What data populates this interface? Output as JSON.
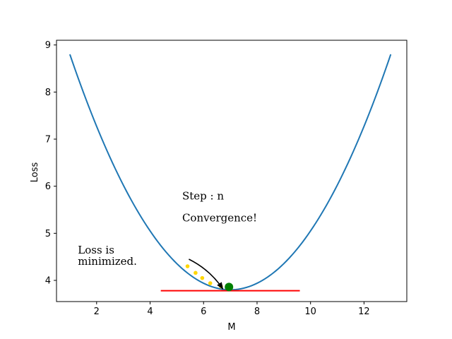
{
  "chart_data": {
    "type": "line",
    "xlabel": "M",
    "ylabel": "Loss",
    "xlim": [
      0.5,
      13.6
    ],
    "ylim": [
      3.55,
      9.1
    ],
    "x_ticks": [
      2,
      4,
      6,
      8,
      10,
      12
    ],
    "y_ticks": [
      4,
      5,
      6,
      7,
      8,
      9
    ],
    "grid": false,
    "curve": {
      "formula": "0.1389*(M-7)^2 + 3.8",
      "x_range": [
        1,
        13
      ],
      "color": "#1f77b4"
    },
    "minimum_line": {
      "y": 3.78,
      "x_range": [
        4.4,
        9.6
      ],
      "color": "#ff0000"
    },
    "step_points": {
      "x": [
        5.4,
        5.7,
        5.95,
        6.25,
        6.65
      ],
      "y": [
        4.3,
        4.16,
        4.05,
        3.94,
        3.87
      ],
      "color": "#ffd700"
    },
    "converged_point": {
      "x": 6.95,
      "y": 3.86,
      "color": "#008000"
    },
    "arrow": {
      "from": [
        5.45,
        4.45
      ],
      "to": [
        6.72,
        3.82
      ]
    },
    "annotations": [
      {
        "id": "step",
        "text": "Step : n",
        "x": 5.2,
        "y": 5.72
      },
      {
        "id": "convergence",
        "text": "Convergence!",
        "x": 5.2,
        "y": 5.25
      },
      {
        "id": "loss1",
        "text": "Loss is",
        "x": 1.3,
        "y": 4.57
      },
      {
        "id": "loss2",
        "text": "minimized.",
        "x": 1.3,
        "y": 4.33
      }
    ]
  }
}
